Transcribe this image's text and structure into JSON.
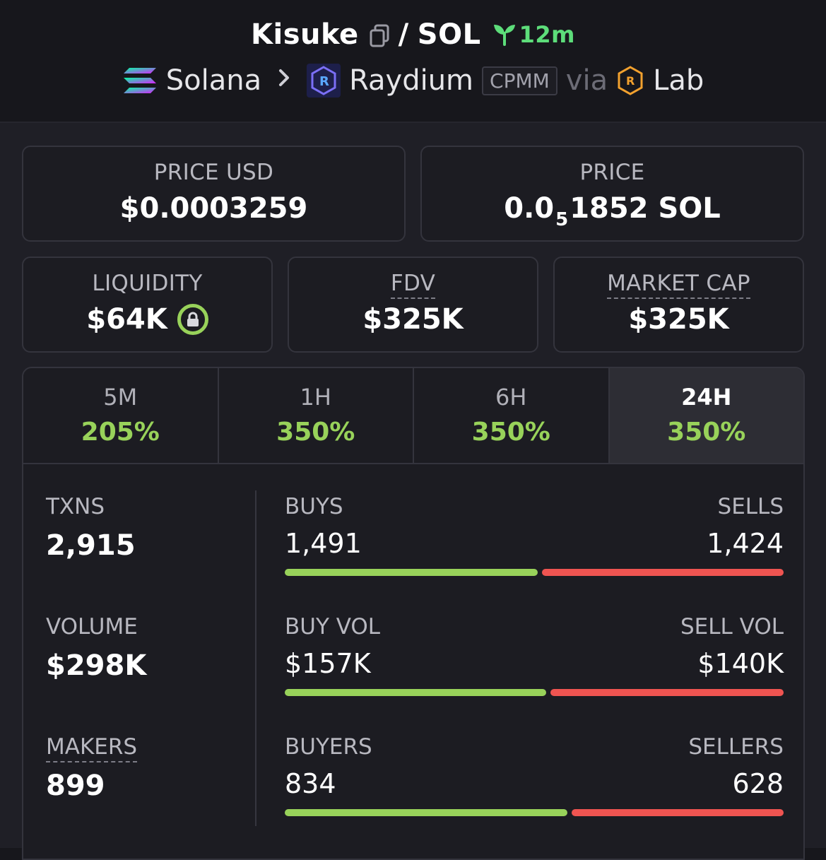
{
  "header": {
    "token": "Kisuke",
    "separator": "/",
    "quote": "SOL",
    "age": "12m",
    "chain": "Solana",
    "dex": "Raydium",
    "pool_type": "CPMM",
    "via": "via",
    "launchpad": "Lab"
  },
  "price": {
    "usd_label": "PRICE USD",
    "usd_value": "$0.0003259",
    "native_label": "PRICE",
    "native_prefix": "0.0",
    "native_zeros": "5",
    "native_suffix": "1852 SOL"
  },
  "metrics": {
    "liquidity_label": "LIQUIDITY",
    "liquidity_value": "$64K",
    "fdv_label": "FDV",
    "fdv_value": "$325K",
    "mcap_label": "MARKET CAP",
    "mcap_value": "$325K"
  },
  "tabs": [
    {
      "label": "5M",
      "change": "205%"
    },
    {
      "label": "1H",
      "change": "350%"
    },
    {
      "label": "6H",
      "change": "350%"
    },
    {
      "label": "24H",
      "change": "350%",
      "active": true
    }
  ],
  "stats": {
    "txns_label": "TXNS",
    "txns_value": "2,915",
    "volume_label": "VOLUME",
    "volume_value": "$298K",
    "makers_label": "MAKERS",
    "makers_value": "899",
    "buys_label": "BUYS",
    "buys_value": "1,491",
    "sells_label": "SELLS",
    "sells_value": "1,424",
    "buy_vol_label": "BUY VOL",
    "buy_vol_value": "$157K",
    "sell_vol_label": "SELL VOL",
    "sell_vol_value": "$140K",
    "buyers_label": "BUYERS",
    "buyers_value": "834",
    "sellers_label": "SELLERS",
    "sellers_value": "628"
  },
  "ratios": {
    "txns_buy_fraction": 0.5115,
    "volume_buy_fraction": 0.529,
    "makers_buy_fraction": 0.5705
  },
  "colors": {
    "buy": "#98d25a",
    "sell": "#ef5451",
    "age": "#5ddd7a",
    "raydium": "#3c3fd9",
    "lab": "#f2a12e"
  },
  "icons": {
    "copy": "copy-icon",
    "age": "sprout-icon",
    "chain": "solana-icon",
    "dex": "raydium-icon",
    "launchpad": "lab-icon",
    "liquidity_status": "lock-icon",
    "breadcrumb": "chevron-right-icon"
  }
}
